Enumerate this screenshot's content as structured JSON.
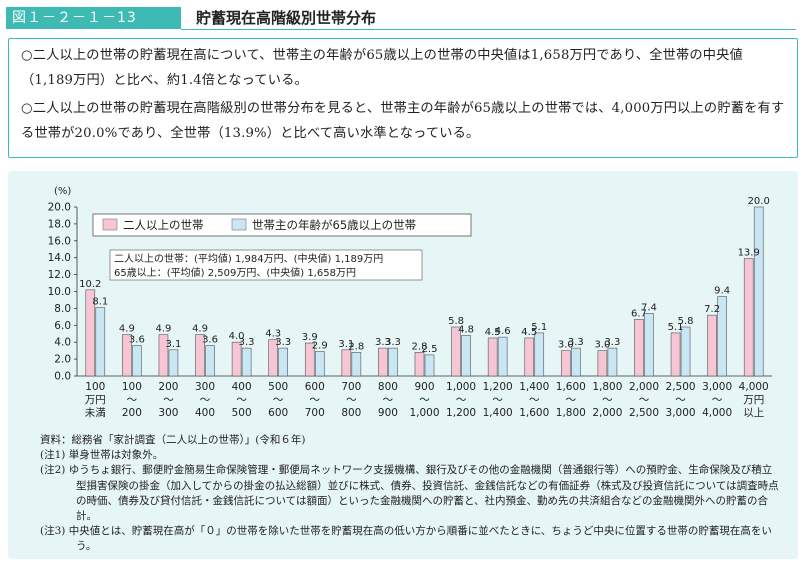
{
  "header": {
    "figure_number": "図１－２－１－13",
    "title": "貯蓄現在高階級別世帯分布"
  },
  "summary": {
    "p1": "○二人以上の世帯の貯蓄現在高について、世帯主の年齢が65歳以上の世帯の中央値は1,658万円であり、全世帯の中央値（1,189万円）と比べ、約1.4倍となっている。",
    "p2": "○二人以上の世帯の貯蓄現在高階級別の世帯分布を見ると、世帯主の年齢が65歳以上の世帯では、4,000万円以上の貯蓄を有する世帯が20.0%であり、全世帯（13.9%）と比べて高い水準となっている。"
  },
  "colors": {
    "all_households": "#f7c6d4",
    "elderly_households": "#c9e6f5",
    "panel": "#e6f5f5",
    "accent": "#3dbab3"
  },
  "chart_data": {
    "type": "bar",
    "ylabel": "(%)",
    "ylim": [
      0,
      20
    ],
    "yticks": [
      "0.0",
      "2.0",
      "4.0",
      "6.0",
      "8.0",
      "10.0",
      "12.0",
      "14.0",
      "16.0",
      "18.0",
      "20.0"
    ],
    "grid": false,
    "legend_position": "top-left",
    "categories": [
      [
        "100",
        "万円",
        "未満"
      ],
      [
        "100",
        "～",
        "200"
      ],
      [
        "200",
        "～",
        "300"
      ],
      [
        "300",
        "～",
        "400"
      ],
      [
        "400",
        "～",
        "500"
      ],
      [
        "500",
        "～",
        "600"
      ],
      [
        "600",
        "～",
        "700"
      ],
      [
        "700",
        "～",
        "800"
      ],
      [
        "800",
        "～",
        "900"
      ],
      [
        "900",
        "～",
        "1,000"
      ],
      [
        "1,000",
        "～",
        "1,200"
      ],
      [
        "1,200",
        "～",
        "1,400"
      ],
      [
        "1,400",
        "～",
        "1,600"
      ],
      [
        "1,600",
        "～",
        "1,800"
      ],
      [
        "1,800",
        "～",
        "2,000"
      ],
      [
        "2,000",
        "～",
        "2,500"
      ],
      [
        "2,500",
        "～",
        "3,000"
      ],
      [
        "3,000",
        "～",
        "4,000"
      ],
      [
        "4,000",
        "万円",
        "以上"
      ]
    ],
    "series": [
      {
        "name": "二人以上の世帯",
        "values": [
          10.2,
          4.9,
          4.9,
          4.9,
          4.0,
          4.3,
          3.9,
          3.1,
          3.3,
          2.8,
          5.8,
          4.5,
          4.5,
          3.0,
          3.0,
          6.7,
          5.1,
          7.2,
          13.9
        ]
      },
      {
        "name": "世帯主の年齢が65歳以上の世帯",
        "values": [
          8.1,
          3.6,
          3.1,
          3.6,
          3.3,
          3.3,
          2.9,
          2.8,
          3.3,
          2.5,
          4.8,
          4.6,
          5.1,
          3.3,
          3.3,
          7.4,
          5.8,
          9.4,
          20.0
        ]
      }
    ],
    "value_labels": [
      [
        "10.2",
        "4.9",
        "4.9",
        "4.9",
        "4.0",
        "4.3",
        "3.9",
        "3.1",
        "3.3",
        "2.8",
        "5.8",
        "4.5",
        "4.5",
        "3.0",
        "3.0",
        "6.7",
        "5.1",
        "7.2",
        "13.9"
      ],
      [
        "8.1",
        "3.6",
        "3.1",
        "3.6",
        "3.3",
        "3.3",
        "2.9",
        "2.8",
        "3.3",
        "2.5",
        "4.8",
        "4.6",
        "5.1",
        "3.3",
        "3.3",
        "7.4",
        "5.8",
        "9.4",
        "20.0"
      ]
    ],
    "annotation": {
      "line1": "二人以上の世帯：(平均値) 1,984万円、(中央値) 1,189万円",
      "line2": "65歳以上：(平均値) 2,509万円、(中央値) 1,658万円"
    }
  },
  "notes": {
    "source": "資料：総務省「家計調査（二人以上の世帯）」(令和６年)",
    "n1": "(注1) 単身世帯は対象外。",
    "n2": "(注2) ゆうちょ銀行、郵便貯金簡易生命保険管理・郵便局ネットワーク支援機構、銀行及びその他の金融機関（普通銀行等）への預貯金、生命保険及び積立型損害保険の掛金（加入してからの掛金の払込総額）並びに株式、債券、投資信託、金銭信託などの有価証券（株式及び投資信託については調査時点の時価、債券及び貸付信託・金銭信託については額面）といった金融機関への貯蓄と、社内預金、勤め先の共済組合などの金融機関外への貯蓄の合計。",
    "n3": "(注3) 中央値とは、貯蓄現在高が「０」の世帯を除いた世帯を貯蓄現在高の低い方から順番に並べたときに、ちょうど中央に位置する世帯の貯蓄現在高をいう。"
  }
}
